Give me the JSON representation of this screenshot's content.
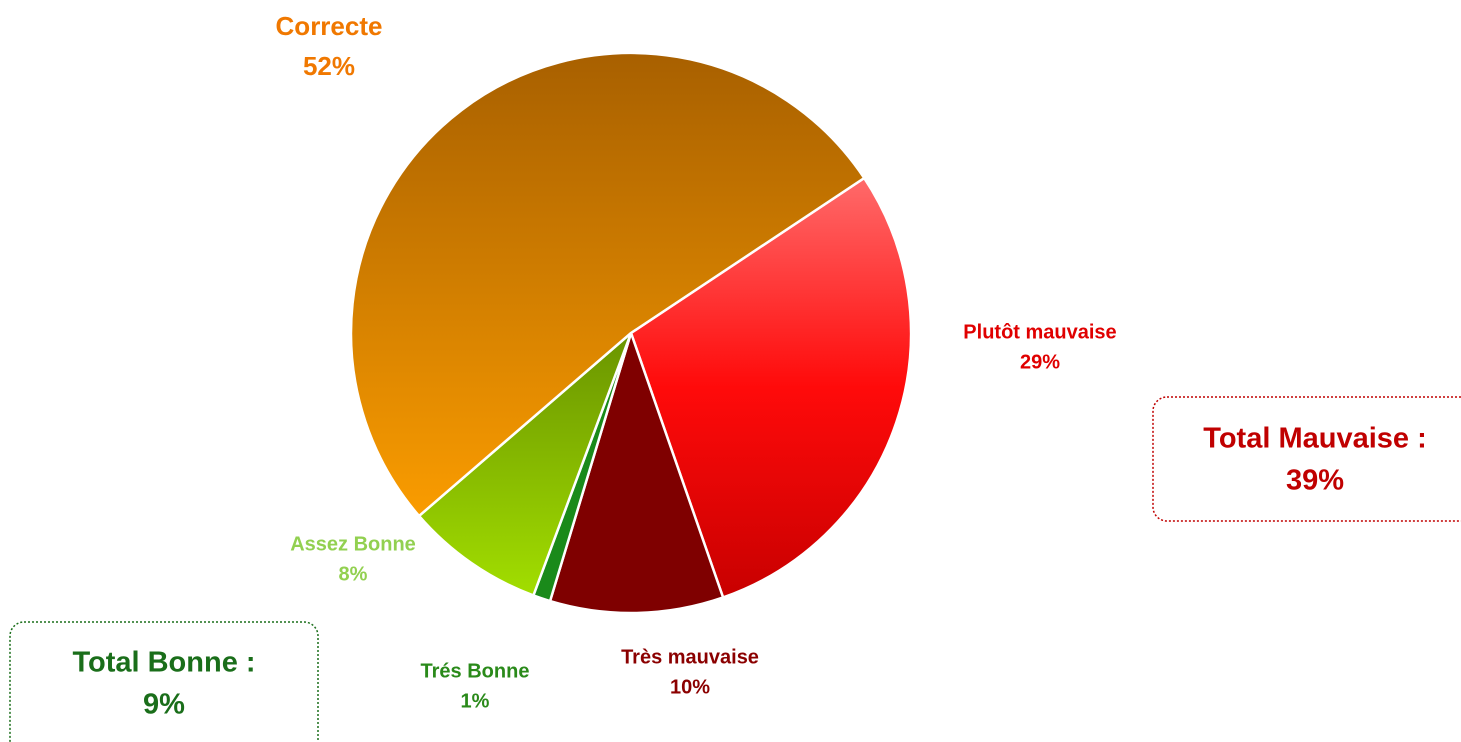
{
  "chart_data": {
    "type": "pie",
    "categories": [
      "Plutôt mauvaise",
      "Très mauvaise",
      "Trés Bonne",
      "Assez Bonne",
      "Correcte"
    ],
    "values": [
      29,
      10,
      1,
      8,
      52
    ],
    "value_labels": [
      "29%",
      "10%",
      "1%",
      "8%",
      "52%"
    ],
    "colors": [
      "#ff1010",
      "#7f0000",
      "#1a8a1a",
      "#8cc000",
      "#d27800"
    ],
    "label_colors": [
      "#e00000",
      "#8b0000",
      "#2a8a1a",
      "#92d050",
      "#f07800"
    ],
    "annotations": [
      {
        "title": "Total Mauvaise :",
        "value": "39%",
        "color": "#c00000"
      },
      {
        "title": "Total Bonne :",
        "value": "9%",
        "color": "#1a6e1a"
      }
    ]
  }
}
